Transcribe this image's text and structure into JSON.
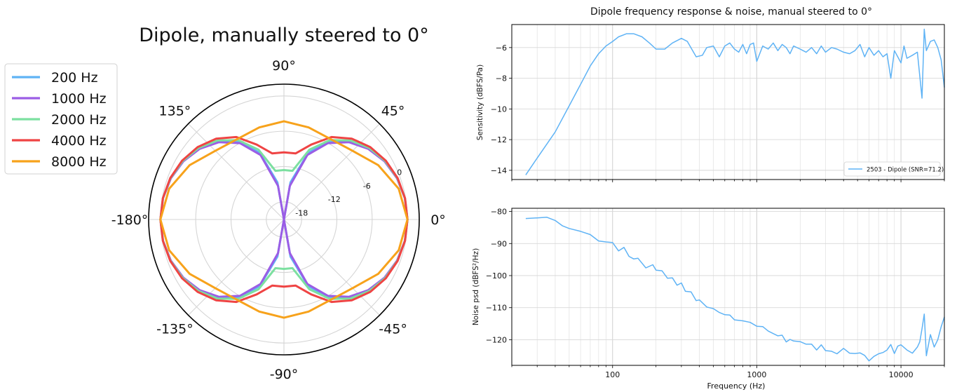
{
  "chart_data": [
    {
      "type": "polar_line",
      "title": "Dipole, manually steered to 0°",
      "angle_tick_labels": [
        "0°",
        "45°",
        "90°",
        "135°",
        "-180°",
        "-135°",
        "-90°",
        "-45°"
      ],
      "radial_tick_labels": [
        "-18",
        "-12",
        "-6",
        "0"
      ],
      "radial_ticks": [
        -18,
        -12,
        -6,
        0
      ],
      "rlim": [
        -21,
        2
      ],
      "grid": true,
      "legend_position": "left",
      "series": [
        {
          "name": "200 Hz",
          "color": "#5fb3f5",
          "null_db": -24
        },
        {
          "name": "1000 Hz",
          "color": "#9b5de5",
          "null_db": -24
        },
        {
          "name": "2000 Hz",
          "color": "#7ce0a0",
          "null_db": -14
        },
        {
          "name": "4000 Hz",
          "color": "#ef4444",
          "null_db": -12
        }
      ],
      "series_8000": {
        "name": "8000 Hz",
        "color": "#f7a21b",
        "angles_deg": [
          0,
          15,
          30,
          45,
          60,
          75,
          90,
          105,
          120,
          135,
          150,
          165,
          180,
          195,
          210,
          225,
          240,
          255,
          270,
          285,
          300,
          315,
          330,
          345,
          360
        ],
        "values_db": [
          0,
          -0.8,
          -2.5,
          -4.5,
          -5.2,
          -4.8,
          -4.3,
          -4.8,
          -5.2,
          -4.5,
          -2.5,
          -0.8,
          0,
          -0.8,
          -2.5,
          -4.5,
          -5.2,
          -4.8,
          -4.3,
          -4.8,
          -5.2,
          -4.5,
          -2.5,
          -0.8,
          0
        ]
      }
    },
    {
      "type": "line",
      "title": "Dipole frequency response & noise, manual steered to 0°",
      "xlabel": "",
      "ylabel": "Sensitivity (dBFS/Pa)",
      "xscale": "log",
      "xlim": [
        20,
        20000
      ],
      "ylim": [
        -14.6,
        -4.5
      ],
      "yticks": [
        -14,
        -12,
        -10,
        -8,
        -6
      ],
      "grid": true,
      "legend_position": "lower right",
      "series": [
        {
          "name": "2503 - Dipole (SNR=71.2)",
          "color": "#5fb3f5",
          "x": [
            25,
            30,
            40,
            50,
            60,
            70,
            80,
            90,
            100,
            110,
            125,
            140,
            160,
            180,
            200,
            230,
            260,
            300,
            330,
            380,
            420,
            450,
            500,
            550,
            600,
            650,
            700,
            750,
            800,
            850,
            900,
            950,
            1000,
            1100,
            1200,
            1300,
            1400,
            1500,
            1600,
            1700,
            1800,
            2000,
            2200,
            2400,
            2600,
            2800,
            3000,
            3300,
            3600,
            4000,
            4400,
            4800,
            5200,
            5600,
            6000,
            6500,
            7000,
            7500,
            8000,
            8500,
            9000,
            9500,
            10000,
            10500,
            11000,
            12000,
            13000,
            14000,
            14500,
            15000,
            16000,
            17000,
            18000,
            19000,
            20000
          ],
          "y": [
            -14.3,
            -13.2,
            -11.5,
            -9.8,
            -8.4,
            -7.2,
            -6.4,
            -5.9,
            -5.6,
            -5.3,
            -5.1,
            -5.1,
            -5.3,
            -5.7,
            -6.1,
            -6.1,
            -5.7,
            -5.4,
            -5.6,
            -6.6,
            -6.5,
            -6.0,
            -5.9,
            -6.6,
            -5.9,
            -5.7,
            -6.1,
            -6.3,
            -5.8,
            -6.4,
            -5.8,
            -5.7,
            -6.9,
            -5.9,
            -6.1,
            -5.7,
            -6.2,
            -5.8,
            -6.0,
            -6.4,
            -5.9,
            -6.1,
            -6.3,
            -6.0,
            -6.4,
            -5.9,
            -6.3,
            -6.0,
            -6.1,
            -6.3,
            -6.4,
            -6.2,
            -5.8,
            -6.6,
            -6.0,
            -6.5,
            -6.2,
            -6.6,
            -6.4,
            -8.0,
            -6.2,
            -6.6,
            -7.0,
            -5.9,
            -6.7,
            -6.5,
            -6.3,
            -9.3,
            -4.8,
            -6.2,
            -5.6,
            -5.5,
            -6.0,
            -6.8,
            -8.6
          ]
        }
      ]
    },
    {
      "type": "line",
      "title": "",
      "xlabel": "Frequency (Hz)",
      "ylabel": "Noise psd (dBFS²/Hz)",
      "xscale": "log",
      "xlim": [
        20,
        20000
      ],
      "ylim": [
        -128,
        -79
      ],
      "yticks": [
        -120,
        -110,
        -100,
        -90,
        -80
      ],
      "xtick_labels": [
        "100",
        "1000",
        "10000"
      ],
      "grid": true,
      "series": [
        {
          "name": "",
          "color": "#5fb3f5",
          "x": [
            25,
            30,
            35,
            40,
            45,
            50,
            60,
            70,
            80,
            90,
            100,
            110,
            120,
            130,
            140,
            150,
            170,
            190,
            200,
            220,
            240,
            260,
            280,
            300,
            320,
            350,
            380,
            400,
            450,
            500,
            550,
            600,
            650,
            700,
            800,
            900,
            1000,
            1100,
            1200,
            1300,
            1400,
            1500,
            1600,
            1700,
            1800,
            2000,
            2200,
            2400,
            2600,
            2800,
            3000,
            3300,
            3600,
            4000,
            4400,
            4800,
            5200,
            5600,
            6000,
            6500,
            7000,
            7500,
            8000,
            8500,
            9000,
            9500,
            10000,
            11000,
            12000,
            13000,
            13500,
            14000,
            14500,
            15000,
            16000,
            17000,
            18000,
            19000,
            20000
          ],
          "y": [
            -82.2,
            -82,
            -81.8,
            -82.8,
            -84.5,
            -85.3,
            -86.2,
            -87.2,
            -89.2,
            -89.5,
            -89.7,
            -92.3,
            -91.2,
            -94,
            -94.8,
            -94.6,
            -97.6,
            -96.6,
            -98.3,
            -98.5,
            -100.8,
            -100.7,
            -103,
            -102.3,
            -104.9,
            -105.1,
            -107.8,
            -107.6,
            -109.8,
            -110.3,
            -111.5,
            -112.2,
            -112.3,
            -113.8,
            -114.1,
            -114.6,
            -115.8,
            -115.9,
            -117.3,
            -118.1,
            -118.8,
            -118.6,
            -120.7,
            -119.9,
            -120.4,
            -120.6,
            -121.4,
            -121.4,
            -123.2,
            -121.6,
            -123.4,
            -123.6,
            -124.4,
            -122.7,
            -124.2,
            -124.3,
            -124.1,
            -124.9,
            -126.6,
            -125.2,
            -124.4,
            -124,
            -123.2,
            -121.5,
            -124.3,
            -122,
            -121.6,
            -123.2,
            -124.2,
            -122.3,
            -120.7,
            -116.6,
            -112,
            -125,
            -118.4,
            -122.3,
            -120,
            -116,
            -112.9
          ]
        }
      ]
    }
  ]
}
